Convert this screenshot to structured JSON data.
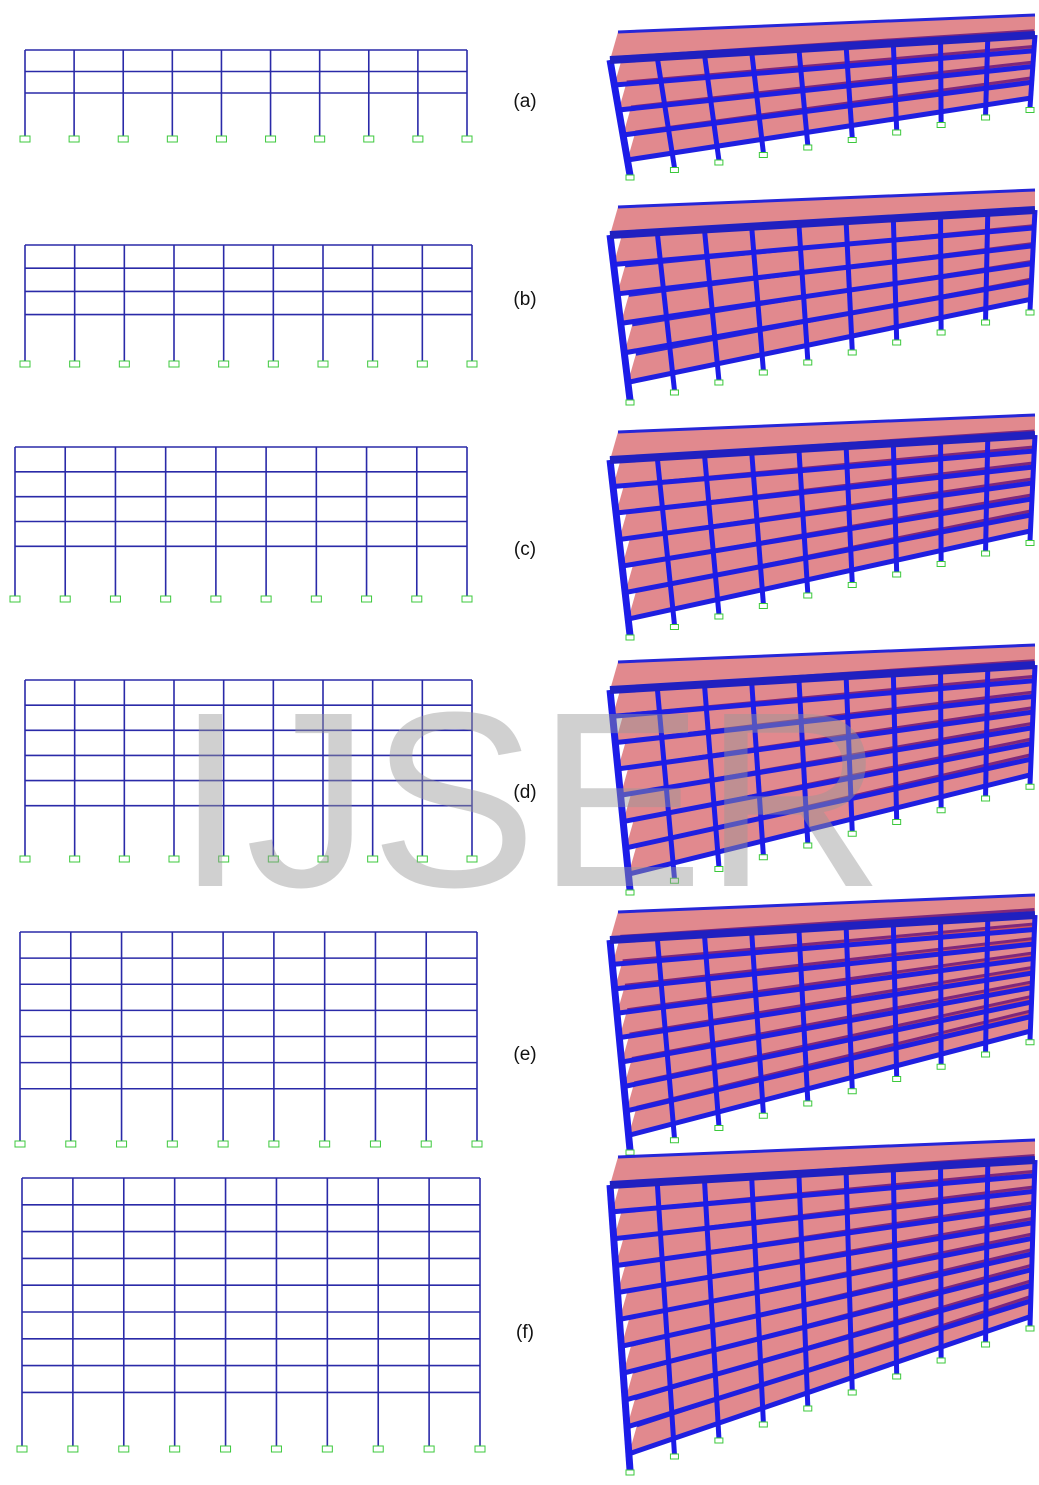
{
  "panels": [
    {
      "label": "(a)"
    },
    {
      "label": "(b)"
    },
    {
      "label": "(c)"
    },
    {
      "label": "(d)"
    },
    {
      "label": "(e)"
    },
    {
      "label": "(f)"
    }
  ],
  "watermark": "IJSER"
}
